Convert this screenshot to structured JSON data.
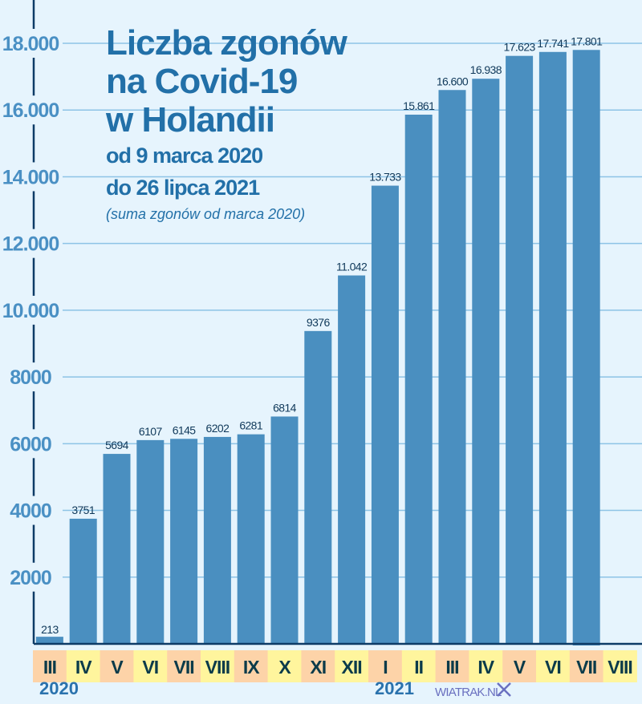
{
  "chart_data": {
    "type": "bar",
    "title": "Liczba zgonów na Covid-19 w Holandii",
    "title_lines": [
      "Liczba zgonów",
      "na Covid-19",
      "w Holandii"
    ],
    "subtitle_lines": [
      "od 9 marca 2020",
      "do 26 lipca 2021"
    ],
    "note": "(suma zgonów od marca 2020)",
    "categories": [
      "III",
      "IV",
      "V",
      "VI",
      "VII",
      "VIII",
      "IX",
      "X",
      "XI",
      "XII",
      "I",
      "II",
      "III",
      "IV",
      "V",
      "VI",
      "VII",
      "VIII"
    ],
    "values": [
      213,
      3751,
      5694,
      6107,
      6145,
      6202,
      6281,
      6814,
      9376,
      11042,
      13733,
      15861,
      16600,
      16938,
      17623,
      17741,
      17801,
      null
    ],
    "value_labels": [
      "213",
      "3751",
      "5694",
      "6107",
      "6145",
      "6202",
      "6281",
      "6814",
      "9376",
      "11.042",
      "13.733",
      "15.861",
      "16.600",
      "16.938",
      "17.623",
      "17.741",
      "17.801",
      ""
    ],
    "year_labels": [
      {
        "text": "2020",
        "category_index": 0
      },
      {
        "text": "2021",
        "category_index": 10
      }
    ],
    "yticks": [
      2000,
      4000,
      6000,
      8000,
      10000,
      12000,
      14000,
      16000,
      18000
    ],
    "ytick_labels": [
      "2000",
      "4000",
      "6000",
      "8000",
      "10.000",
      "12.000",
      "14.000",
      "16.000",
      "18.000"
    ],
    "ylim": [
      0,
      19200
    ],
    "grid": true,
    "xlabel": "",
    "ylabel": "",
    "colors": {
      "bar": "#4a8fc0",
      "grid": "#8dc3e6",
      "axis": "#0d3b66",
      "cell_a": "#fdd3a8",
      "cell_b": "#fff59d",
      "background": "#e6f4fd"
    }
  },
  "watermark": "WIATRAK.NL"
}
